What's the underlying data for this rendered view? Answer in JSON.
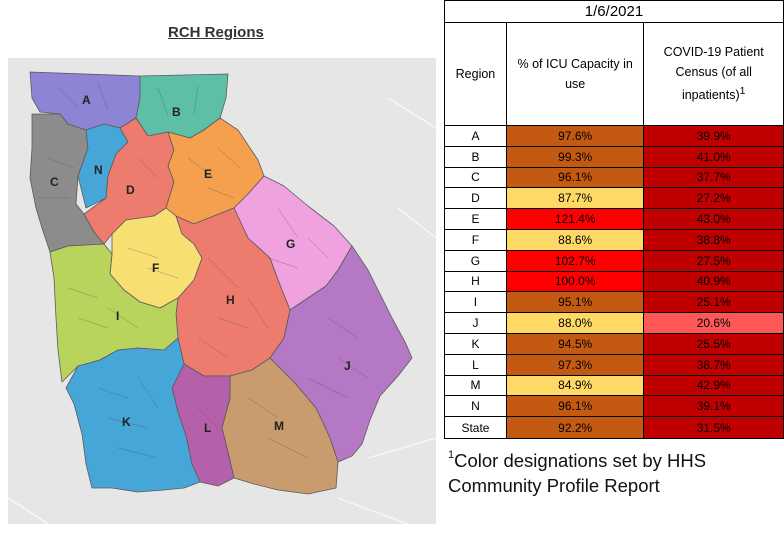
{
  "map": {
    "title": "RCH Regions",
    "region_colors": {
      "A": "#8d84d6",
      "B": "#5dbfa6",
      "C": "#8c8c8c",
      "D": "#ee7c6e",
      "E": "#f4a04e",
      "F": "#f8df72",
      "G": "#f0a2e0",
      "H": "#ee7c6e",
      "I": "#b8d45c",
      "J": "#b578c4",
      "K": "#47a6d8",
      "L": "#b460aa",
      "M": "#c89c6e",
      "N": "#47a6d8"
    },
    "labels": [
      "A",
      "B",
      "C",
      "D",
      "E",
      "F",
      "G",
      "H",
      "I",
      "J",
      "K",
      "L",
      "M",
      "N"
    ]
  },
  "table": {
    "date": "1/6/2021",
    "headers": {
      "region": "Region",
      "icu": "% of ICU Capacity in use",
      "census": "COVID-19 Patient Census (of all inpatients)",
      "census_sup": "1"
    },
    "rows": [
      {
        "region": "A",
        "icu": "97.6%",
        "census": "39.9%",
        "icu_color": "#c45911",
        "census_color": "#c00000"
      },
      {
        "region": "B",
        "icu": "99.3%",
        "census": "41.0%",
        "icu_color": "#c45911",
        "census_color": "#c00000"
      },
      {
        "region": "C",
        "icu": "96.1%",
        "census": "37.7%",
        "icu_color": "#c45911",
        "census_color": "#c00000"
      },
      {
        "region": "D",
        "icu": "87.7%",
        "census": "27.2%",
        "icu_color": "#ffd966",
        "census_color": "#c00000"
      },
      {
        "region": "E",
        "icu": "121.4%",
        "census": "43.0%",
        "icu_color": "#ff0000",
        "census_color": "#c00000"
      },
      {
        "region": "F",
        "icu": "88.6%",
        "census": "38.8%",
        "icu_color": "#ffd966",
        "census_color": "#c00000"
      },
      {
        "region": "G",
        "icu": "102.7%",
        "census": "27.5%",
        "icu_color": "#ff0000",
        "census_color": "#c00000"
      },
      {
        "region": "H",
        "icu": "100.0%",
        "census": "40.9%",
        "icu_color": "#ff0000",
        "census_color": "#c00000"
      },
      {
        "region": "I",
        "icu": "95.1%",
        "census": "25.1%",
        "icu_color": "#c45911",
        "census_color": "#c00000"
      },
      {
        "region": "J",
        "icu": "88.0%",
        "census": "20.6%",
        "icu_color": "#ffd966",
        "census_color": "#ff5757"
      },
      {
        "region": "K",
        "icu": "94.5%",
        "census": "25.5%",
        "icu_color": "#c45911",
        "census_color": "#c00000"
      },
      {
        "region": "L",
        "icu": "97.3%",
        "census": "38.7%",
        "icu_color": "#c45911",
        "census_color": "#c00000"
      },
      {
        "region": "M",
        "icu": "84.9%",
        "census": "42.9%",
        "icu_color": "#ffd966",
        "census_color": "#c00000"
      },
      {
        "region": "N",
        "icu": "96.1%",
        "census": "39.1%",
        "icu_color": "#c45911",
        "census_color": "#c00000"
      }
    ],
    "state": {
      "region": "State",
      "icu": "92.2%",
      "census": "31.5%",
      "icu_color": "#c45911",
      "census_color": "#c00000"
    }
  },
  "footnote": {
    "sup": "1",
    "text": "Color designations set by HHS Community Profile Report"
  }
}
